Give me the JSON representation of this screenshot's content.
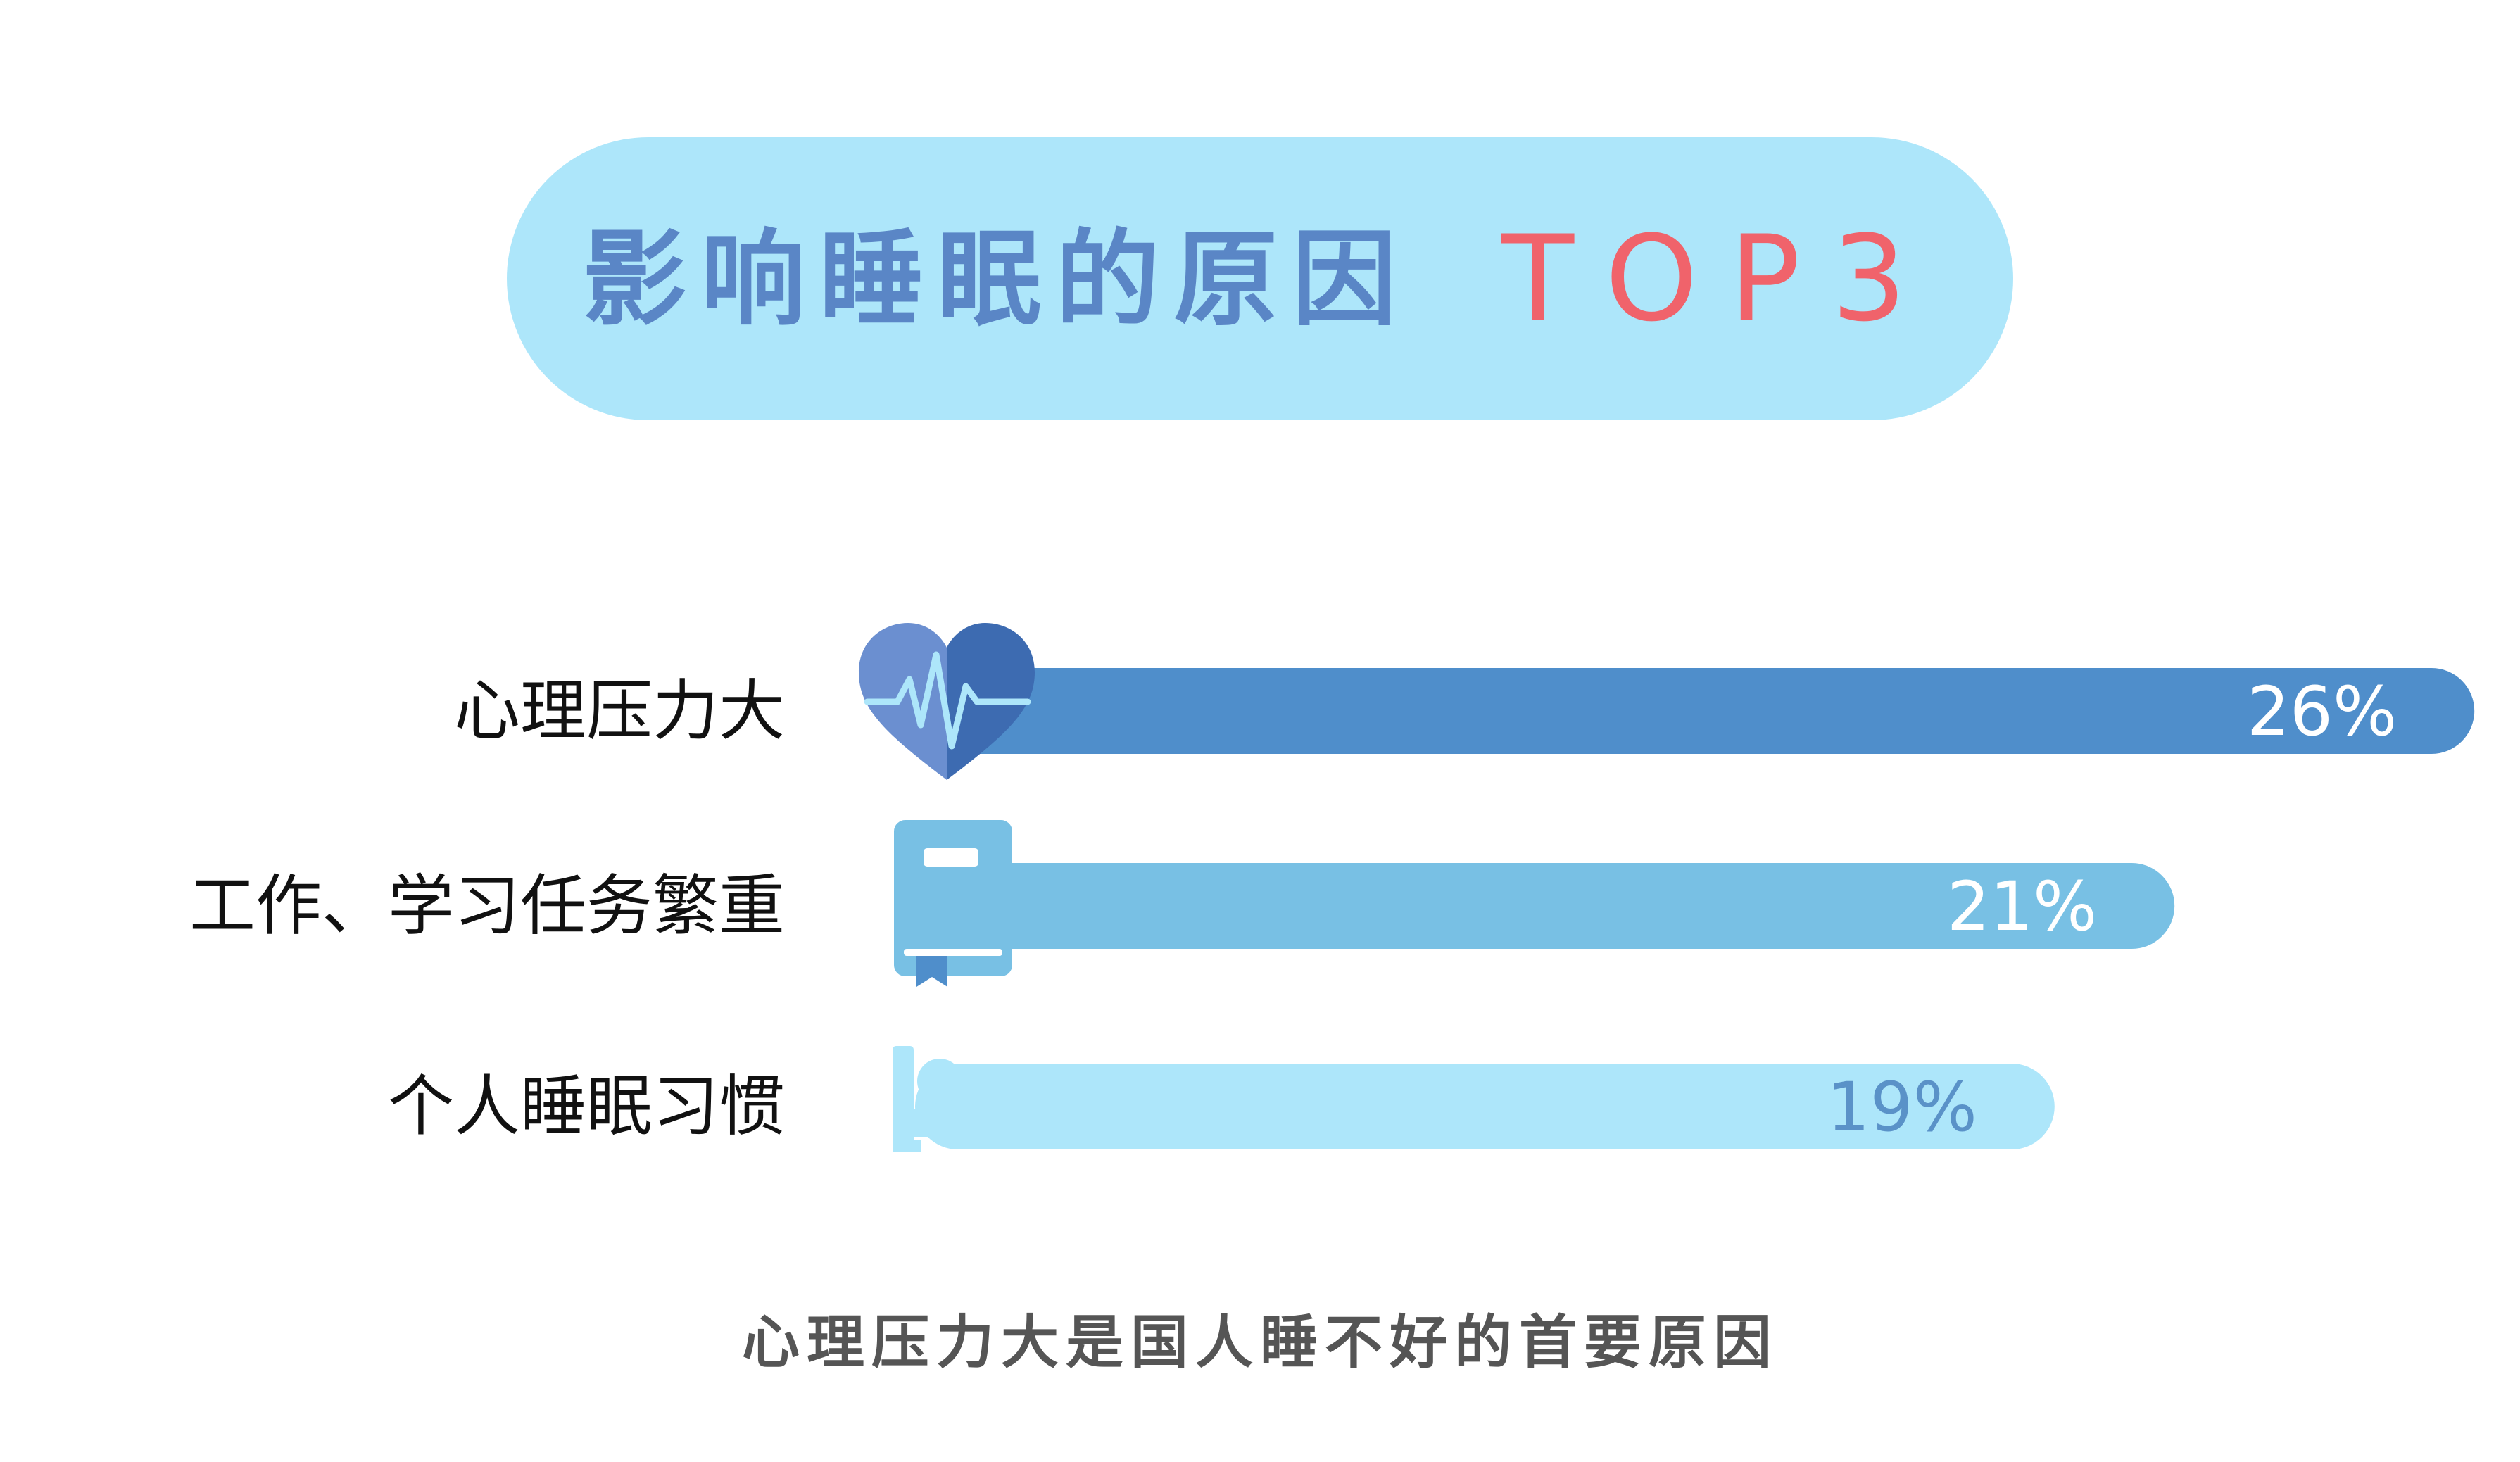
{
  "title": {
    "main": "影响睡眠的原因",
    "accent": "TOP3"
  },
  "colors": {
    "title_bg": "#ade6fa",
    "title_text": "#5a86c6",
    "title_accent": "#f0636b",
    "bar_1": "#4f8ecb",
    "bar_2": "#78c0e4",
    "bar_3": "#ade6fa",
    "value_light": "#ffffff",
    "value_dark": "#5a92c8"
  },
  "chart_data": {
    "type": "bar",
    "orientation": "horizontal",
    "categories": [
      "心理压力大",
      "工作、学习任务繁重",
      "个人睡眠习惯"
    ],
    "values": [
      26,
      21,
      19
    ],
    "value_labels": [
      "26%",
      "21%",
      "19%"
    ],
    "icons": [
      "heartbeat-icon",
      "book-icon",
      "bed-icon"
    ],
    "unit": "%"
  },
  "footer": {
    "text": "心理压力大是国人睡不好的首要原因"
  }
}
